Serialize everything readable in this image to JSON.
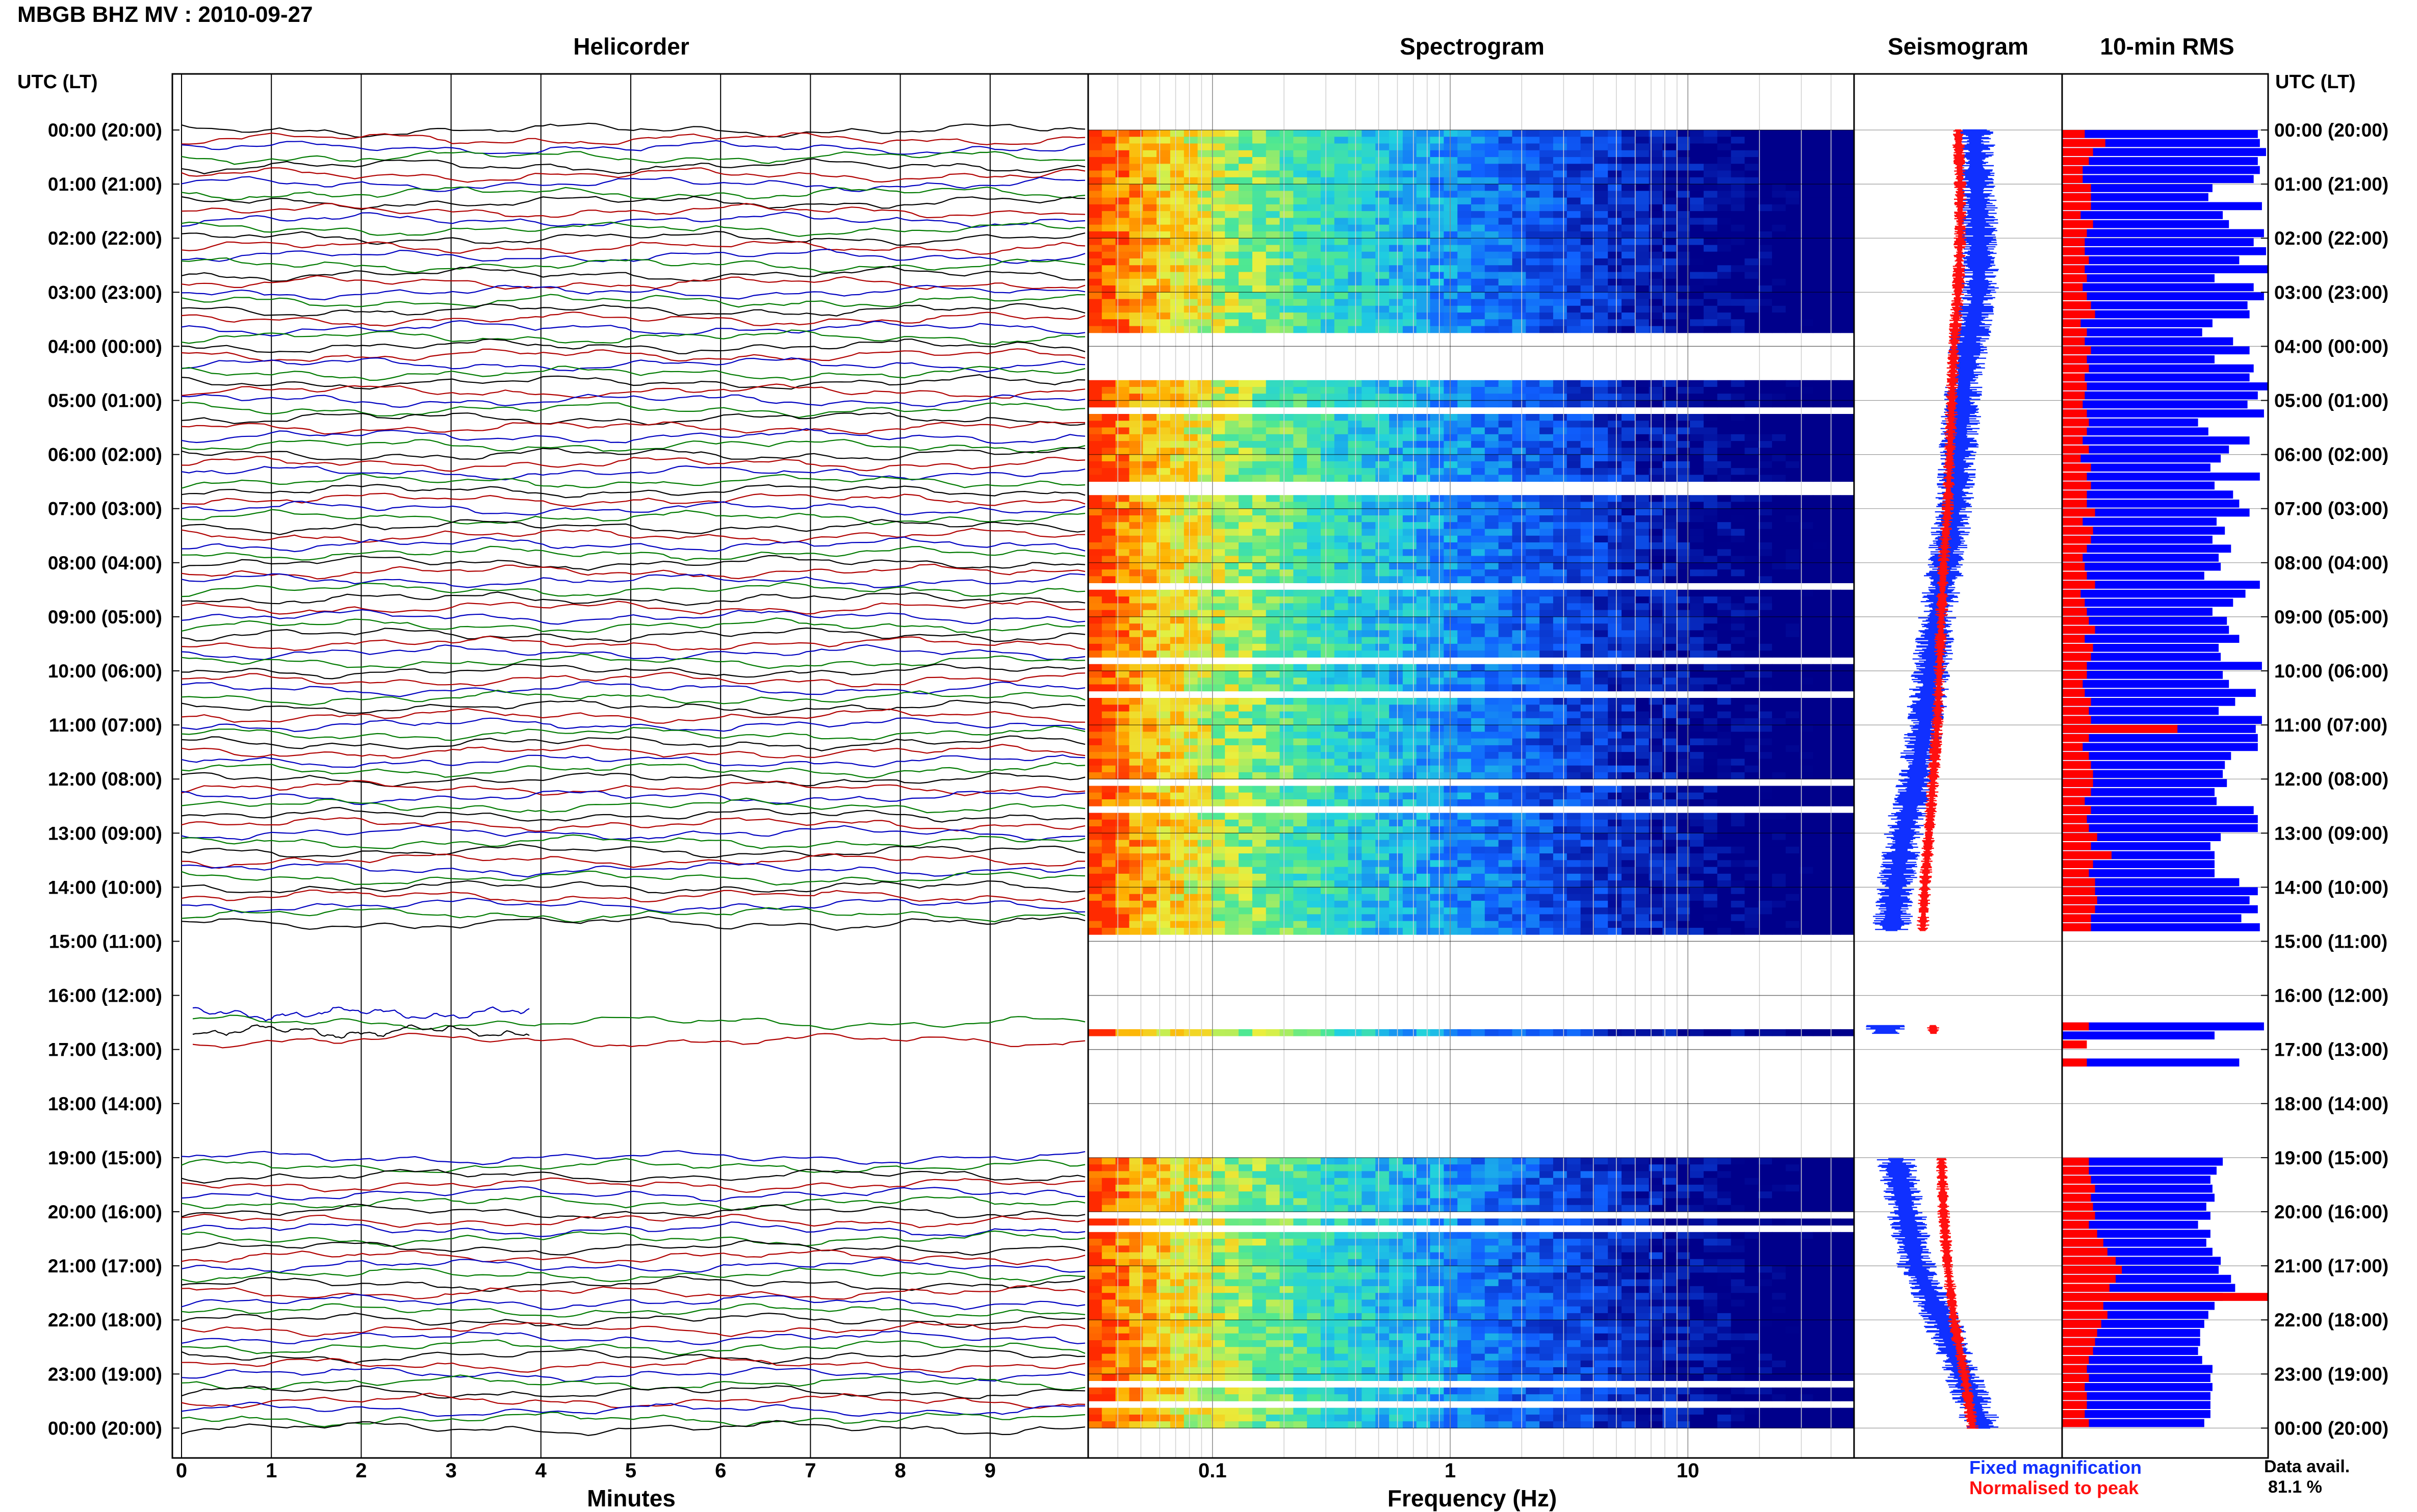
{
  "station_title": "MBGB BHZ MV : 2010-09-27",
  "panels": {
    "helicorder": "Helicorder",
    "spectrogram": "Spectrogram",
    "seismogram": "Seismogram",
    "rms": "10-min RMS"
  },
  "utc_header": "UTC (LT)",
  "hour_labels": [
    "00:00 (20:00)",
    "01:00 (21:00)",
    "02:00 (22:00)",
    "03:00 (23:00)",
    "04:00 (00:00)",
    "05:00 (01:00)",
    "06:00 (02:00)",
    "07:00 (03:00)",
    "08:00 (04:00)",
    "09:00 (05:00)",
    "10:00 (06:00)",
    "11:00 (07:00)",
    "12:00 (08:00)",
    "13:00 (09:00)",
    "14:00 (10:00)",
    "15:00 (11:00)",
    "16:00 (12:00)",
    "17:00 (13:00)",
    "18:00 (14:00)",
    "19:00 (15:00)",
    "20:00 (16:00)",
    "21:00 (17:00)",
    "22:00 (18:00)",
    "23:00 (19:00)",
    "00:00 (20:00)"
  ],
  "legend": {
    "fixed": "Fixed magnification",
    "normalised": "Normalised to peak",
    "fixed_color": "#1030ff",
    "normalised_color": "#ff1010"
  },
  "data_avail_label": "Data avail.",
  "data_avail_value": "81.1 %",
  "colors": {
    "trace_cycle": [
      "#000000",
      "#b00000",
      "#0000c0",
      "#007a00"
    ],
    "rms_fixed": "#0000ff",
    "rms_normalised": "#ff0000",
    "spectro_low": "#00008b",
    "spectro_high": "#ff2a00"
  },
  "chart_data": [
    {
      "type": "line",
      "title": "Helicorder",
      "xlabel": "Minutes",
      "xlim": [
        0,
        10
      ],
      "x_ticks": [
        "0",
        "1",
        "2",
        "3",
        "4",
        "5",
        "6",
        "7",
        "8",
        "9"
      ],
      "y_range_hours": [
        0,
        24
      ],
      "trace_interval_minutes": 10,
      "missing_data_hours": [
        [
          14.8,
          16.3
        ],
        [
          16.95,
          18.9
        ]
      ]
    },
    {
      "type": "heatmap",
      "title": "Spectrogram",
      "xlabel": "Frequency (Hz)",
      "x_scale": "log",
      "xlim": [
        0.03,
        50
      ],
      "x_ticks": [
        "0.1",
        "1",
        "10"
      ],
      "gap_hours": [
        [
          0.35,
          0.38
        ],
        [
          1.85,
          1.88
        ],
        [
          3.65,
          4.6
        ],
        [
          5.1,
          5.15
        ],
        [
          5.45,
          5.5
        ],
        [
          6.45,
          6.75
        ],
        [
          8.35,
          8.45
        ],
        [
          9.75,
          9.8
        ],
        [
          10.3,
          10.4
        ],
        [
          11.15,
          11.25
        ],
        [
          12.0,
          12.05
        ],
        [
          12.45,
          12.55
        ],
        [
          14.4,
          14.45
        ],
        [
          14.8,
          16.58
        ],
        [
          16.72,
          19.0
        ],
        [
          20.0,
          20.05
        ],
        [
          20.25,
          20.3
        ],
        [
          23.05,
          23.2
        ],
        [
          23.45,
          23.55
        ]
      ]
    },
    {
      "type": "line",
      "title": "Seismogram",
      "series": [
        {
          "name": "Fixed magnification",
          "x": [
            0,
            1,
            2,
            3,
            4,
            5,
            6,
            7,
            8,
            9,
            10,
            11,
            12,
            13,
            14,
            14.8,
            16.6,
            19,
            20,
            21,
            22,
            23,
            24
          ],
          "values": [
            0.58,
            0.59,
            0.6,
            0.6,
            0.55,
            0.52,
            0.5,
            0.48,
            0.44,
            0.4,
            0.37,
            0.34,
            0.3,
            0.24,
            0.2,
            0.18,
            0.15,
            0.2,
            0.25,
            0.3,
            0.42,
            0.52,
            0.62
          ]
        },
        {
          "name": "Normalised to peak",
          "x": [
            0,
            1,
            2,
            3,
            4,
            5,
            6,
            7,
            8,
            9,
            10,
            11,
            12,
            13,
            14,
            14.8,
            16.6,
            19,
            20,
            21,
            22,
            23,
            24
          ],
          "values": [
            0.5,
            0.51,
            0.51,
            0.5,
            0.48,
            0.47,
            0.46,
            0.45,
            0.43,
            0.42,
            0.41,
            0.4,
            0.38,
            0.36,
            0.34,
            0.33,
            0.38,
            0.42,
            0.43,
            0.45,
            0.48,
            0.53,
            0.57
          ]
        }
      ]
    },
    {
      "type": "bar",
      "title": "10-min RMS",
      "orientation": "horizontal",
      "xlim": [
        0,
        1
      ],
      "series": [
        {
          "name": "Fixed magnification",
          "bin_hours": [
            0,
            0.1667,
            0.3333,
            0.5,
            0.6667,
            0.8333,
            1.0,
            1.1667,
            1.3333,
            1.5,
            1.6667,
            1.8333,
            2.0,
            2.1667,
            2.3333,
            2.5,
            2.6667,
            2.8333,
            3.0,
            3.1667,
            3.3333,
            3.5,
            3.6667,
            3.8333,
            4.0,
            4.1667,
            4.3333,
            4.5,
            4.6667,
            4.8333,
            5.0,
            5.1667,
            5.3333,
            5.5,
            5.6667,
            5.8333,
            6.0,
            6.1667,
            6.3333,
            6.5,
            6.6667,
            6.8333,
            7.0,
            7.1667,
            7.3333,
            7.5,
            7.6667,
            7.8333,
            8.0,
            8.1667,
            8.3333,
            8.5,
            8.6667,
            8.8333,
            9.0,
            9.1667,
            9.3333,
            9.5,
            9.6667,
            9.8333,
            10.0,
            10.1667,
            10.3333,
            10.5,
            10.6667,
            10.8333,
            11.0,
            11.1667,
            11.3333,
            11.5,
            11.6667,
            11.8333,
            12.0,
            12.1667,
            12.3333,
            12.5,
            12.6667,
            12.8333,
            13.0,
            13.1667,
            13.3333,
            13.5,
            13.6667,
            13.8333,
            14.0,
            14.1667,
            14.3333,
            14.5,
            14.6667,
            16.5,
            16.6667,
            16.8333,
            17.1667,
            19.0,
            19.1667,
            19.3333,
            19.5,
            19.6667,
            19.8333,
            20.0,
            20.1667,
            20.3333,
            20.5,
            20.6667,
            20.8333,
            21.0,
            21.1667,
            21.3333,
            21.5,
            21.6667,
            21.8333,
            22.0,
            22.1667,
            22.3333,
            22.5,
            22.6667,
            22.8333,
            23.0,
            23.1667,
            23.3333,
            23.5,
            23.6667,
            23.8333
          ],
          "values": [
            0.95,
            0.96,
            0.99,
            0.95,
            0.96,
            0.93,
            0.73,
            0.71,
            0.97,
            0.78,
            0.81,
            0.98,
            0.93,
            0.99,
            0.86,
            1.0,
            0.74,
            0.93,
            0.98,
            0.9,
            0.91,
            0.73,
            0.68,
            0.83,
            0.91,
            0.74,
            0.93,
            0.91,
            1.0,
            0.95,
            0.9,
            0.98,
            0.66,
            0.71,
            0.91,
            0.81,
            0.77,
            0.72,
            0.96,
            0.74,
            0.83,
            0.86,
            0.91,
            0.75,
            0.79,
            0.73,
            0.82,
            0.76,
            0.77,
            0.69,
            0.96,
            0.89,
            0.83,
            0.73,
            0.8,
            0.81,
            0.86,
            0.76,
            0.77,
            0.97,
            0.78,
            0.81,
            0.94,
            0.84,
            0.76,
            0.97,
            0.94,
            0.95,
            0.95,
            0.82,
            0.79,
            0.78,
            0.8,
            0.74,
            0.75,
            0.93,
            0.95,
            0.95,
            0.77,
            0.72,
            0.74,
            0.74,
            0.74,
            0.86,
            0.95,
            0.91,
            0.95,
            0.87,
            0.96,
            0.98,
            0.74,
            0.0,
            0.86,
            0.78,
            0.75,
            0.72,
            0.73,
            0.74,
            0.7,
            0.72,
            0.66,
            0.72,
            0.7,
            0.73,
            0.77,
            0.76,
            0.82,
            0.84,
            0.78,
            0.74,
            0.71,
            0.69,
            0.67,
            0.67,
            0.66,
            0.68,
            0.73,
            0.72,
            0.73,
            0.72,
            0.72,
            0.72,
            0.69
          ]
        },
        {
          "name": "Normalised to peak",
          "bin_hours": [
            0,
            0.1667,
            0.3333,
            0.5,
            0.6667,
            0.8333,
            1.0,
            1.1667,
            1.3333,
            1.5,
            1.6667,
            1.8333,
            2.0,
            2.1667,
            2.3333,
            2.5,
            2.6667,
            2.8333,
            3.0,
            3.1667,
            3.3333,
            3.5,
            3.6667,
            3.8333,
            4.0,
            4.1667,
            4.3333,
            4.5,
            4.6667,
            4.8333,
            5.0,
            5.1667,
            5.3333,
            5.5,
            5.6667,
            5.8333,
            6.0,
            6.1667,
            6.3333,
            6.5,
            6.6667,
            6.8333,
            7.0,
            7.1667,
            7.3333,
            7.5,
            7.6667,
            7.8333,
            8.0,
            8.1667,
            8.3333,
            8.5,
            8.6667,
            8.8333,
            9.0,
            9.1667,
            9.3333,
            9.5,
            9.6667,
            9.8333,
            10.0,
            10.1667,
            10.3333,
            10.5,
            10.6667,
            10.8333,
            11.0,
            11.1667,
            11.3333,
            11.5,
            11.6667,
            11.8333,
            12.0,
            12.1667,
            12.3333,
            12.5,
            12.6667,
            12.8333,
            13.0,
            13.1667,
            13.3333,
            13.5,
            13.6667,
            13.8333,
            14.0,
            14.1667,
            14.3333,
            14.5,
            14.6667,
            16.5,
            16.6667,
            16.8333,
            17.1667,
            19.0,
            19.1667,
            19.3333,
            19.5,
            19.6667,
            19.8333,
            20.0,
            20.1667,
            20.3333,
            20.5,
            20.6667,
            20.8333,
            21.0,
            21.1667,
            21.3333,
            21.5,
            21.6667,
            21.8333,
            22.0,
            22.1667,
            22.3333,
            22.5,
            22.6667,
            22.8333,
            23.0,
            23.1667,
            23.3333,
            23.5,
            23.6667,
            23.8333
          ],
          "values": [
            0.11,
            0.21,
            0.15,
            0.13,
            0.1,
            0.1,
            0.14,
            0.14,
            0.14,
            0.09,
            0.15,
            0.12,
            0.11,
            0.11,
            0.13,
            0.11,
            0.12,
            0.1,
            0.12,
            0.14,
            0.16,
            0.09,
            0.12,
            0.11,
            0.14,
            0.12,
            0.13,
            0.11,
            0.12,
            0.11,
            0.1,
            0.12,
            0.13,
            0.12,
            0.1,
            0.13,
            0.09,
            0.14,
            0.12,
            0.14,
            0.12,
            0.12,
            0.16,
            0.1,
            0.15,
            0.14,
            0.12,
            0.1,
            0.11,
            0.12,
            0.16,
            0.09,
            0.11,
            0.12,
            0.13,
            0.16,
            0.11,
            0.15,
            0.14,
            0.12,
            0.12,
            0.1,
            0.11,
            0.14,
            0.13,
            0.14,
            0.56,
            0.13,
            0.1,
            0.13,
            0.14,
            0.15,
            0.15,
            0.14,
            0.11,
            0.14,
            0.12,
            0.13,
            0.17,
            0.14,
            0.24,
            0.15,
            0.13,
            0.16,
            0.16,
            0.17,
            0.16,
            0.14,
            0.14,
            0.13,
            0.0,
            0.12,
            0.12,
            0.13,
            0.13,
            0.14,
            0.16,
            0.14,
            0.15,
            0.16,
            0.13,
            0.17,
            0.2,
            0.22,
            0.26,
            0.29,
            0.26,
            0.23,
            1.0,
            0.2,
            0.22,
            0.19,
            0.17,
            0.16,
            0.15,
            0.13,
            0.12,
            0.13,
            0.11,
            0.12,
            0.12,
            0.11,
            0.13
          ]
        }
      ]
    }
  ]
}
